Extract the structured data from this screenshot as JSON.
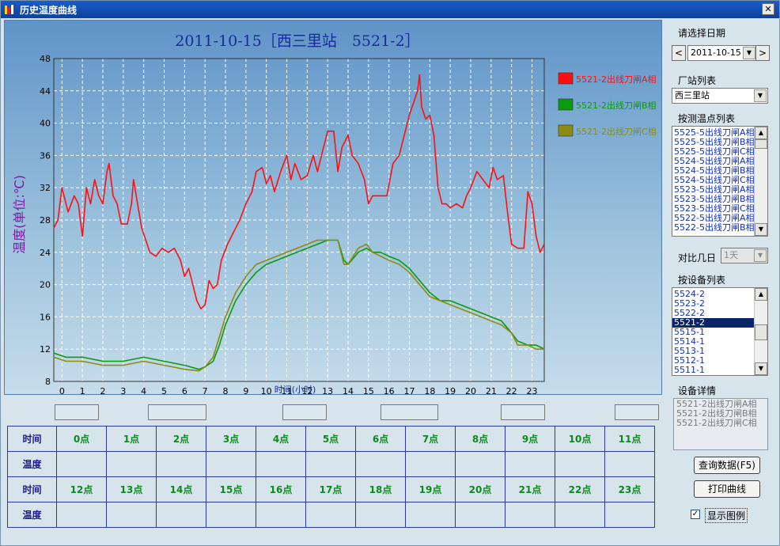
{
  "window": {
    "title": "历史温度曲线",
    "close_label": "✕"
  },
  "chart": {
    "title": "2011-10-15［西三里站　5521-2］",
    "ylabel": "温度(单位:℃)",
    "xlabel": "时间(小时)",
    "colors": {
      "a": "#ff1010",
      "b": "#0a9a10",
      "c": "#8c8c10"
    }
  },
  "chart_data": {
    "type": "line",
    "title": "2011-10-15［西三里站　5521-2］",
    "xlabel": "时间(小时)",
    "ylabel": "温度(单位:℃)",
    "xlim": [
      -0.4,
      23.6
    ],
    "ylim": [
      8,
      48
    ],
    "yticks": [
      8,
      12,
      16,
      20,
      24,
      28,
      32,
      36,
      40,
      44,
      48
    ],
    "xticks": [
      0,
      1,
      2,
      3,
      4,
      5,
      6,
      7,
      8,
      9,
      10,
      11,
      12,
      13,
      14,
      15,
      16,
      17,
      18,
      19,
      20,
      21,
      22,
      23
    ],
    "grid": true,
    "legend": "right",
    "series": [
      {
        "name": "5521-2出线刀闸A相",
        "color": "#ff1010",
        "points": [
          [
            -0.4,
            27
          ],
          [
            -0.2,
            28
          ],
          [
            0,
            32
          ],
          [
            0.3,
            29
          ],
          [
            0.6,
            31
          ],
          [
            0.8,
            30
          ],
          [
            1,
            26
          ],
          [
            1.2,
            32
          ],
          [
            1.4,
            30
          ],
          [
            1.6,
            33
          ],
          [
            1.8,
            31
          ],
          [
            2,
            30
          ],
          [
            2.2,
            34
          ],
          [
            2.3,
            35
          ],
          [
            2.5,
            31
          ],
          [
            2.7,
            30
          ],
          [
            2.9,
            27.5
          ],
          [
            3.2,
            27.5
          ],
          [
            3.4,
            30
          ],
          [
            3.5,
            33
          ],
          [
            3.7,
            30
          ],
          [
            3.9,
            27
          ],
          [
            4.1,
            25.5
          ],
          [
            4.3,
            24
          ],
          [
            4.6,
            23.5
          ],
          [
            4.9,
            24.5
          ],
          [
            5.2,
            24
          ],
          [
            5.5,
            24.5
          ],
          [
            5.8,
            23
          ],
          [
            6,
            21
          ],
          [
            6.2,
            22
          ],
          [
            6.4,
            20
          ],
          [
            6.6,
            18
          ],
          [
            6.8,
            17
          ],
          [
            7,
            17.5
          ],
          [
            7.2,
            20.5
          ],
          [
            7.4,
            19.5
          ],
          [
            7.6,
            20
          ],
          [
            7.8,
            23
          ],
          [
            8.1,
            25
          ],
          [
            8.4,
            26.5
          ],
          [
            8.7,
            28
          ],
          [
            9,
            30
          ],
          [
            9.3,
            31.5
          ],
          [
            9.5,
            34
          ],
          [
            9.8,
            34.5
          ],
          [
            10,
            32.5
          ],
          [
            10.2,
            33.5
          ],
          [
            10.4,
            31.5
          ],
          [
            10.7,
            34
          ],
          [
            11,
            36
          ],
          [
            11.2,
            33
          ],
          [
            11.4,
            35
          ],
          [
            11.7,
            33
          ],
          [
            12,
            33.5
          ],
          [
            12.3,
            36
          ],
          [
            12.5,
            34
          ],
          [
            12.8,
            37
          ],
          [
            13,
            39
          ],
          [
            13.3,
            39
          ],
          [
            13.5,
            34
          ],
          [
            13.7,
            37
          ],
          [
            14,
            38.5
          ],
          [
            14.2,
            36
          ],
          [
            14.5,
            35
          ],
          [
            14.8,
            33
          ],
          [
            15,
            30
          ],
          [
            15.2,
            31
          ],
          [
            15.6,
            31
          ],
          [
            15.9,
            31
          ],
          [
            16.2,
            35
          ],
          [
            16.5,
            36
          ],
          [
            16.8,
            39
          ],
          [
            17,
            41
          ],
          [
            17.2,
            42.5
          ],
          [
            17.4,
            44
          ],
          [
            17.5,
            46
          ],
          [
            17.6,
            42
          ],
          [
            17.8,
            40.5
          ],
          [
            18,
            41
          ],
          [
            18.2,
            38.5
          ],
          [
            18.4,
            32
          ],
          [
            18.6,
            30
          ],
          [
            18.8,
            30
          ],
          [
            19,
            29.5
          ],
          [
            19.3,
            30
          ],
          [
            19.6,
            29.5
          ],
          [
            19.8,
            31
          ],
          [
            20,
            32
          ],
          [
            20.3,
            34
          ],
          [
            20.6,
            33
          ],
          [
            20.9,
            32
          ],
          [
            21.1,
            34.5
          ],
          [
            21.3,
            33
          ],
          [
            21.6,
            33.5
          ],
          [
            21.8,
            29
          ],
          [
            22,
            25
          ],
          [
            22.3,
            24.5
          ],
          [
            22.6,
            24.5
          ],
          [
            22.8,
            31.5
          ],
          [
            23,
            30
          ],
          [
            23.2,
            26
          ],
          [
            23.4,
            24
          ],
          [
            23.6,
            25
          ]
        ]
      },
      {
        "name": "5521-2出线刀闸B相",
        "color": "#0a9a10",
        "points": [
          [
            -0.4,
            11.5
          ],
          [
            0.2,
            11
          ],
          [
            1,
            11
          ],
          [
            2,
            10.5
          ],
          [
            3,
            10.5
          ],
          [
            4,
            11
          ],
          [
            5,
            10.5
          ],
          [
            6,
            10
          ],
          [
            6.7,
            9.5
          ],
          [
            7,
            9.8
          ],
          [
            7.4,
            10.5
          ],
          [
            7.7,
            12.5
          ],
          [
            8,
            15
          ],
          [
            8.5,
            18
          ],
          [
            9,
            20
          ],
          [
            9.5,
            21.5
          ],
          [
            10,
            22.5
          ],
          [
            10.5,
            23
          ],
          [
            11,
            23.5
          ],
          [
            11.5,
            24
          ],
          [
            12,
            24.5
          ],
          [
            12.5,
            25
          ],
          [
            13,
            25.5
          ],
          [
            13.5,
            25.5
          ],
          [
            13.8,
            23
          ],
          [
            14,
            22.5
          ],
          [
            14.5,
            24
          ],
          [
            14.9,
            24.5
          ],
          [
            15.2,
            24
          ],
          [
            15.6,
            24
          ],
          [
            16,
            23.5
          ],
          [
            16.5,
            23
          ],
          [
            17,
            22
          ],
          [
            17.5,
            20.5
          ],
          [
            18,
            19
          ],
          [
            18.5,
            18
          ],
          [
            19,
            18
          ],
          [
            19.5,
            17.5
          ],
          [
            20,
            17
          ],
          [
            20.5,
            16.5
          ],
          [
            21,
            16
          ],
          [
            21.5,
            15.5
          ],
          [
            22,
            14
          ],
          [
            22.3,
            13
          ],
          [
            22.8,
            12.5
          ],
          [
            23.2,
            12.5
          ],
          [
            23.6,
            12
          ]
        ]
      },
      {
        "name": "5521-2出线刀闸C相",
        "color": "#8c8c10",
        "points": [
          [
            -0.4,
            11
          ],
          [
            0.2,
            10.5
          ],
          [
            1,
            10.5
          ],
          [
            2,
            10
          ],
          [
            3,
            10
          ],
          [
            4,
            10.5
          ],
          [
            5,
            10
          ],
          [
            6,
            9.5
          ],
          [
            6.7,
            9.3
          ],
          [
            7,
            9.8
          ],
          [
            7.4,
            11
          ],
          [
            7.7,
            13.5
          ],
          [
            8,
            16
          ],
          [
            8.5,
            19
          ],
          [
            9,
            21
          ],
          [
            9.5,
            22.5
          ],
          [
            10,
            23
          ],
          [
            10.5,
            23.5
          ],
          [
            11,
            24
          ],
          [
            11.5,
            24.5
          ],
          [
            12,
            25
          ],
          [
            12.5,
            25.5
          ],
          [
            13,
            25.5
          ],
          [
            13.5,
            25.5
          ],
          [
            13.8,
            22.5
          ],
          [
            14,
            22.5
          ],
          [
            14.5,
            24.5
          ],
          [
            14.9,
            25
          ],
          [
            15.2,
            24
          ],
          [
            15.6,
            23.5
          ],
          [
            16,
            23
          ],
          [
            16.5,
            22.5
          ],
          [
            17,
            21.5
          ],
          [
            17.5,
            20
          ],
          [
            18,
            18.5
          ],
          [
            18.5,
            18
          ],
          [
            19,
            17.5
          ],
          [
            19.5,
            17
          ],
          [
            20,
            16.5
          ],
          [
            20.5,
            16
          ],
          [
            21,
            15.5
          ],
          [
            21.5,
            15
          ],
          [
            22,
            14
          ],
          [
            22.3,
            12.5
          ],
          [
            22.8,
            12.5
          ],
          [
            23.2,
            12
          ],
          [
            23.6,
            12
          ]
        ]
      }
    ]
  },
  "sidebar": {
    "date_label": "请选择日期",
    "date_value": "2011-10-15",
    "prev": "<",
    "next": ">",
    "station_label": "厂站列表",
    "station_value": "西三里站",
    "points_label": "按测温点列表",
    "points": [
      "5525-5出线刀闸A相",
      "5525-5出线刀闸B相",
      "5525-5出线刀闸C相",
      "5524-5出线刀闸A相",
      "5524-5出线刀闸B相",
      "5524-5出线刀闸C相",
      "5523-5出线刀闸A相",
      "5523-5出线刀闸B相",
      "5523-5出线刀闸C相",
      "5522-5出线刀闸A相",
      "5522-5出线刀闸B相"
    ],
    "compare_label": "对比几日",
    "compare_value": "1天",
    "devices_label": "按设备列表",
    "devices": [
      "5524-2",
      "5523-2",
      "5522-2",
      "5521-2",
      "5515-1",
      "5514-1",
      "5513-1",
      "5512-1",
      "5511-1"
    ],
    "selected_device": "5521-2",
    "detail_label": "设备详情",
    "details": [
      "5521-2出线刀闸A相",
      "5521-2出线刀闸B相",
      "5521-2出线刀闸C相"
    ],
    "query_button": "查询数据(F5)",
    "print_button": "打印曲线",
    "legend_checkbox": "显示图例",
    "legend_checked": "✓"
  },
  "table": {
    "time_label": "时间",
    "temp_label": "温度",
    "hours_row1": [
      "0点",
      "1点",
      "2点",
      "3点",
      "4点",
      "5点",
      "6点",
      "7点",
      "8点",
      "9点",
      "10点",
      "11点"
    ],
    "hours_row2": [
      "12点",
      "13点",
      "14点",
      "15点",
      "16点",
      "17点",
      "18点",
      "19点",
      "20点",
      "21点",
      "22点",
      "23点"
    ]
  }
}
